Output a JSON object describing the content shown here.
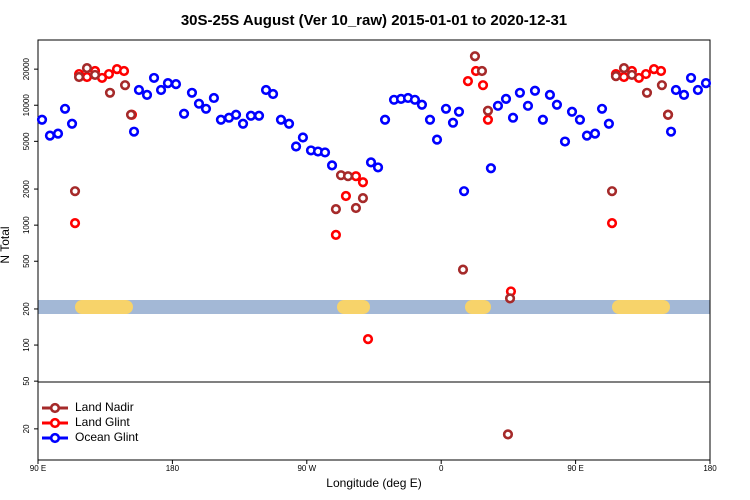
{
  "chart_data": {
    "type": "scatter",
    "title": "30S-25S August (Ver 10_raw)   2015-01-01 to 2020-12-31",
    "x_label": "Longitude (deg E)",
    "y_label": "N Total",
    "xlim": [
      90,
      540
    ],
    "xticks": [
      {
        "value": 90,
        "label": "90 E"
      },
      180,
      {
        "value": 270,
        "label": "90 W"
      },
      {
        "value": 360,
        "label": "0"
      },
      {
        "value": 450,
        "label": "90 E"
      },
      {
        "value": 540,
        "label": "180"
      }
    ],
    "ylim": [
      11,
      35000
    ],
    "log_y": true,
    "yticks": [
      20,
      50,
      100,
      200,
      500,
      1000,
      2000,
      5000,
      10000,
      20000
    ],
    "legend": "lower left",
    "series": [
      {
        "name": "Land Nadir",
        "color": "#a52a2a",
        "x": [
          114.8,
          117.5,
          122.8,
          128.2,
          138.2,
          148.3,
          152.3,
          289.5,
          292.9,
          297.6,
          302.9,
          307.6,
          382.6,
          387.3,
          391.3,
          374.6,
          406.1,
          404.7,
          474.4,
          477.0,
          482.4,
          487.7,
          497.8,
          507.8,
          511.9
        ],
        "values": [
          1920,
          17200,
          20400,
          17900,
          12700,
          14700,
          8330,
          1360,
          2610,
          2560,
          1390,
          1680,
          25600,
          19300,
          8990,
          426,
          245,
          18,
          1920,
          17500,
          20400,
          17900,
          12700,
          14700,
          8330
        ]
      },
      {
        "name": "Land Glint",
        "color": "#ff0000",
        "x": [
          114.8,
          117.5,
          122.8,
          128.2,
          132.9,
          137.5,
          142.9,
          147.6,
          152.9,
          289.5,
          296.2,
          302.9,
          307.6,
          311.0,
          377.9,
          383.3,
          388.0,
          391.3,
          406.7,
          474.4,
          477.0,
          482.4,
          487.7,
          492.4,
          497.1,
          502.5,
          507.2,
          511.9
        ],
        "values": [
          1040,
          18200,
          17200,
          19300,
          16900,
          18200,
          20000,
          19300,
          8330,
          830,
          1750,
          2560,
          2280,
          112,
          15900,
          19300,
          14700,
          7570,
          280,
          1040,
          18200,
          17200,
          19300,
          16900,
          18200,
          20000,
          19300,
          8330
        ]
      },
      {
        "name": "Ocean Glint",
        "color": "#0000ff",
        "x": [
          92.7,
          98.0,
          103.4,
          108.1,
          112.8,
          154.3,
          157.6,
          163.0,
          167.7,
          172.4,
          177.0,
          182.4,
          187.8,
          193.1,
          197.8,
          202.5,
          207.8,
          212.5,
          217.9,
          222.6,
          227.3,
          232.6,
          238.0,
          242.7,
          247.4,
          252.7,
          258.1,
          262.8,
          267.4,
          272.8,
          277.5,
          282.2,
          286.9,
          313.0,
          317.7,
          322.4,
          328.4,
          333.1,
          337.8,
          342.4,
          347.1,
          352.5,
          357.2,
          363.2,
          367.9,
          371.9,
          375.3,
          393.3,
          398.0,
          403.4,
          408.1,
          412.7,
          418.1,
          422.8,
          428.1,
          432.8,
          437.5,
          442.9,
          447.6,
          452.9,
          457.6,
          463.0,
          467.7,
          472.3,
          513.9,
          517.2,
          522.6,
          527.3,
          531.9,
          537.3
        ],
        "values": [
          7570,
          5580,
          5800,
          9340,
          7010,
          6020,
          13400,
          12200,
          16900,
          13400,
          15300,
          15000,
          8490,
          12700,
          10300,
          9340,
          11500,
          7570,
          7870,
          8330,
          7010,
          8170,
          8170,
          13400,
          12400,
          7570,
          7010,
          4530,
          5380,
          4200,
          4110,
          4040,
          3150,
          3340,
          3030,
          7570,
          11100,
          11300,
          11500,
          11100,
          10100,
          7570,
          5170,
          9340,
          7150,
          8820,
          1920,
          2980,
          9890,
          11300,
          7870,
          12700,
          9890,
          13200,
          7570,
          12200,
          10100,
          4980,
          8820,
          7570,
          5580,
          5800,
          9340,
          7010,
          6020,
          13400,
          12200,
          16900,
          13400,
          15300
        ]
      }
    ]
  }
}
